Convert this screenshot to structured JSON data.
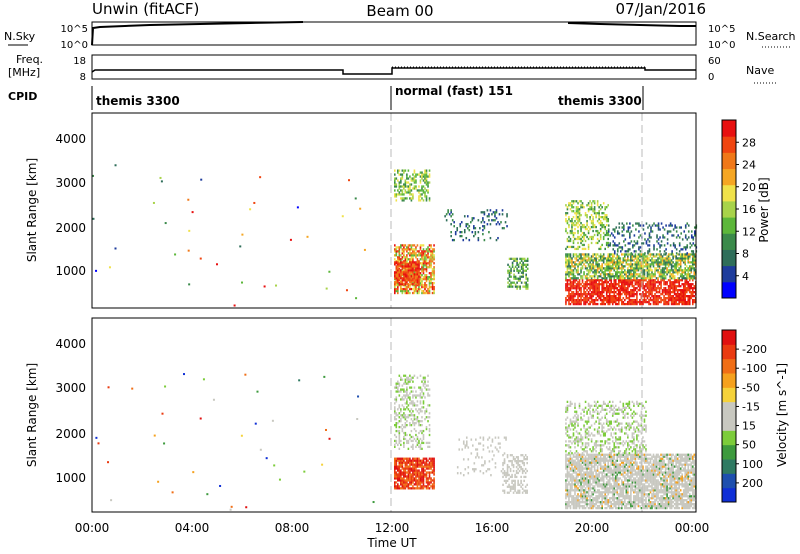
{
  "header": {
    "radar": "Unwin (fitACF)",
    "beam": "Beam 00",
    "date": "07/Jan/2016"
  },
  "nsky_panel": {
    "left_label": "N.Sky",
    "right_label": "N.Search",
    "left_ticks": [
      "10^5",
      "10^0"
    ],
    "right_ticks": [
      "10^5",
      "10^0"
    ]
  },
  "freq_panel": {
    "left_label_1": "Freq.",
    "left_label_2": "[MHz]",
    "right_label": "Nave",
    "left_ticks": [
      "18",
      "8"
    ],
    "right_ticks": [
      "60",
      "0"
    ]
  },
  "cpid_panel": {
    "label": "CPID",
    "modes": [
      "themis 3300",
      "normal (fast) 151",
      "themis 3300"
    ]
  },
  "time_axis": {
    "title": "Time UT",
    "ticks": [
      "00:00",
      "04:00",
      "08:00",
      "12:00",
      "16:00",
      "20:00",
      "00:00"
    ]
  },
  "chart_data": [
    {
      "type": "heatmap",
      "title": "",
      "xlabel": "Time UT",
      "ylabel": "Slant Range [km]",
      "xlim": [
        0,
        24
      ],
      "ylim": [
        180,
        4600
      ],
      "y_ticks": [
        "1000",
        "2000",
        "3000",
        "4000"
      ],
      "colorbar": {
        "label": "Power [dB]",
        "ticks": [
          "4",
          "8",
          "12",
          "16",
          "20",
          "24",
          "28"
        ],
        "colors": [
          "#0000ff",
          "#1e3c9c",
          "#2f6e5a",
          "#3a8a4a",
          "#5cb73a",
          "#a8d34a",
          "#f0e24a",
          "#f5a623",
          "#f07818",
          "#f04510",
          "#e81010"
        ]
      },
      "dividers_hours": [
        12,
        22
      ]
    },
    {
      "type": "heatmap",
      "title": "",
      "xlabel": "Time UT",
      "ylabel": "Slant Range [km]",
      "xlim": [
        0,
        24
      ],
      "ylim": [
        180,
        4600
      ],
      "y_ticks": [
        "1000",
        "2000",
        "3000",
        "4000"
      ],
      "colorbar": {
        "label": "Velocity [m s^-1]",
        "ticks": [
          "200",
          "100",
          "50",
          "15",
          "-15",
          "-50",
          "-100",
          "-200"
        ],
        "colors": [
          "#0f2fd6",
          "#1e4fae",
          "#2f7a62",
          "#3d9a3d",
          "#7ccc3a",
          "#c8c8c0",
          "#c8c8c0",
          "#f5d23a",
          "#f5a11e",
          "#f06e16",
          "#ea3a10",
          "#e01010"
        ]
      },
      "dividers_hours": [
        12,
        22
      ]
    }
  ]
}
